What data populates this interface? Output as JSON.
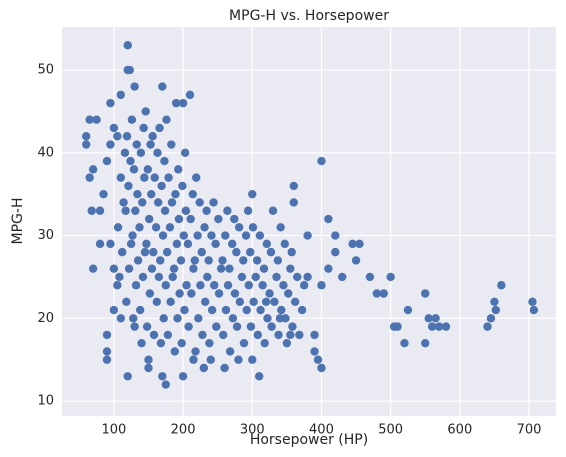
{
  "chart_data": {
    "type": "scatter",
    "title": "MPG-H vs. Horsepower",
    "xlabel": "Horsepower (HP)",
    "ylabel": "MPG-H",
    "color": "#4c72b0",
    "grid": true,
    "xlim": [
      25,
      739
    ],
    "ylim": [
      8.2,
      55.2
    ],
    "xticks": [
      100,
      200,
      300,
      400,
      500,
      600,
      700
    ],
    "yticks": [
      10,
      20,
      30,
      40,
      50
    ],
    "x": [
      108,
      112,
      106,
      114,
      110,
      116,
      118,
      122,
      125,
      117,
      121,
      124,
      119,
      128,
      132,
      135,
      127,
      131,
      134,
      129,
      133,
      126,
      138,
      142,
      145,
      137,
      141,
      144,
      139,
      143,
      148,
      152,
      155,
      147,
      151,
      154,
      149,
      153,
      146,
      158,
      162,
      165,
      157,
      161,
      164,
      159,
      163,
      156,
      168,
      172,
      175,
      167,
      171,
      174,
      169,
      173,
      166,
      178,
      182,
      185,
      177,
      181,
      184,
      179,
      183,
      176,
      188,
      192,
      195,
      187,
      191,
      194,
      189,
      193,
      198,
      202,
      205,
      197,
      201,
      204,
      199,
      203,
      208,
      212,
      215,
      207,
      211,
      214,
      218,
      222,
      225,
      217,
      221,
      224,
      219,
      228,
      232,
      235,
      227,
      231,
      234,
      238,
      242,
      245,
      237,
      241,
      244,
      248,
      252,
      255,
      247,
      251,
      258,
      262,
      265,
      257,
      261,
      264,
      268,
      272,
      275,
      267,
      271,
      274,
      278,
      282,
      285,
      277,
      281,
      288,
      292,
      295,
      287,
      291,
      294,
      298,
      302,
      305,
      297,
      301,
      308,
      312,
      315,
      307,
      311,
      318,
      322,
      325,
      317,
      321,
      328,
      332,
      335,
      327,
      338,
      342,
      345,
      337,
      341,
      348,
      352,
      355,
      347,
      358,
      362,
      365,
      357,
      368,
      372,
      375,
      120,
      120,
      123,
      110,
      210,
      95,
      190,
      200,
      170,
      130,
      60,
      60,
      65,
      75,
      70,
      65,
      68,
      70,
      90,
      90,
      90,
      120,
      175,
      170,
      200,
      310,
      400,
      400,
      445,
      455,
      420,
      420,
      410,
      400,
      410,
      430,
      450,
      470,
      480,
      490,
      500,
      505,
      510,
      520,
      525,
      550,
      550,
      555,
      560,
      565,
      570,
      580,
      640,
      645,
      650,
      652,
      660,
      705,
      707,
      300,
      360,
      360,
      330,
      380,
      380,
      390,
      395,
      390,
      350,
      355,
      340,
      320,
      300,
      280,
      260,
      240,
      230,
      215,
      150,
      150,
      140,
      130,
      110,
      100,
      105,
      100,
      95,
      80,
      80,
      85,
      90,
      95,
      100,
      105
    ],
    "y": [
      25,
      28,
      31,
      34,
      37,
      40,
      22,
      26,
      29,
      33,
      36,
      39,
      42,
      20,
      24,
      27,
      30,
      33,
      35,
      38,
      41,
      44,
      21,
      25,
      28,
      31,
      34,
      37,
      40,
      43,
      19,
      23,
      26,
      29,
      32,
      35,
      38,
      41,
      45,
      18,
      22,
      25,
      28,
      31,
      34,
      37,
      40,
      42,
      17,
      20,
      24,
      27,
      30,
      33,
      36,
      39,
      43,
      18,
      22,
      25,
      28,
      31,
      34,
      37,
      41,
      44,
      16,
      20,
      23,
      26,
      29,
      32,
      35,
      38,
      17,
      21,
      24,
      27,
      30,
      33,
      36,
      40,
      19,
      23,
      26,
      29,
      32,
      35,
      16,
      20,
      24,
      27,
      30,
      34,
      37,
      18,
      22,
      25,
      28,
      31,
      33,
      17,
      21,
      24,
      27,
      30,
      34,
      19,
      23,
      26,
      29,
      32,
      18,
      21,
      24,
      27,
      30,
      33,
      16,
      20,
      23,
      26,
      29,
      32,
      19,
      22,
      25,
      28,
      31,
      17,
      21,
      24,
      27,
      30,
      33,
      19,
      22,
      25,
      28,
      31,
      18,
      21,
      24,
      27,
      30,
      17,
      20,
      23,
      26,
      29,
      19,
      22,
      25,
      28,
      18,
      21,
      24,
      27,
      31,
      20,
      23,
      26,
      29,
      19,
      22,
      25,
      28,
      18,
      21,
      24,
      53,
      50,
      50,
      47,
      47,
      46,
      46,
      46,
      48,
      48,
      42,
      41,
      44,
      44,
      38,
      37,
      33,
      26,
      18,
      16,
      15,
      13,
      12,
      13,
      13,
      13,
      14,
      39,
      29,
      29,
      28,
      30,
      32,
      24,
      26,
      25,
      27,
      25,
      23,
      23,
      25,
      19,
      19,
      17,
      21,
      23,
      17,
      20,
      19,
      20,
      19,
      19,
      19,
      20,
      22,
      21,
      24,
      22,
      21,
      35,
      36,
      34,
      33,
      30,
      25,
      18,
      15,
      16,
      17,
      18,
      20,
      22,
      15,
      15,
      14,
      15,
      14,
      15,
      15,
      14,
      17,
      19,
      20,
      21,
      24,
      26,
      29,
      29,
      33,
      35,
      39,
      41,
      43,
      42
    ]
  }
}
